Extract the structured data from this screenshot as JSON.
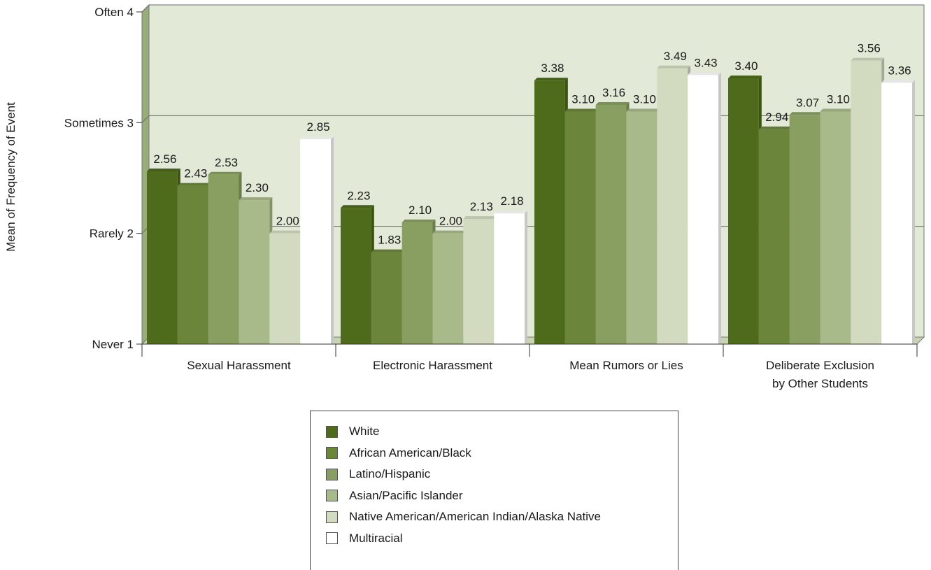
{
  "chart_data": {
    "type": "bar",
    "ylabel": "Mean of Frequency of Event",
    "ylim": [
      1,
      4
    ],
    "y_ticks": [
      {
        "value": 4,
        "label": "Often 4"
      },
      {
        "value": 3,
        "label": "Sometimes 3"
      },
      {
        "value": 2,
        "label": "Rarely 2"
      },
      {
        "value": 1,
        "label": "Never 1"
      }
    ],
    "categories": [
      [
        "Sexual Harassment"
      ],
      [
        "Electronic Harassment"
      ],
      [
        "Mean Rumors or Lies"
      ],
      [
        "Deliberate Exclusion",
        "by Other Students"
      ]
    ],
    "series": [
      {
        "name": "White",
        "color": "#4d6b1a",
        "values": [
          2.56,
          2.23,
          3.38,
          3.4
        ]
      },
      {
        "name": "African American/Black",
        "color": "#6b863b",
        "values": [
          2.43,
          1.83,
          3.1,
          2.94
        ]
      },
      {
        "name": "Latino/Hispanic",
        "color": "#899f62",
        "values": [
          2.53,
          2.1,
          3.16,
          3.07
        ]
      },
      {
        "name": "Asian/Pacific Islander",
        "color": "#a9ba8a",
        "values": [
          2.3,
          2.0,
          3.1,
          3.1
        ]
      },
      {
        "name": "Native American/American Indian/Alaska Native",
        "color": "#d2dac0",
        "values": [
          2.0,
          2.13,
          3.49,
          3.56
        ]
      },
      {
        "name": "Multiracial",
        "color": "#ffffff",
        "values": [
          2.85,
          2.18,
          3.43,
          3.36
        ]
      }
    ],
    "value_labels": [
      [
        "2.56",
        "2.23",
        "3.38",
        "3.40"
      ],
      [
        "2.43",
        "1.83",
        "3.10",
        "2.94"
      ],
      [
        "2.53",
        "2.10",
        "3.16",
        "3.07"
      ],
      [
        "2.30",
        "2.00",
        "3.10",
        "3.10"
      ],
      [
        "2.00",
        "2.13",
        "3.49",
        "3.56"
      ],
      [
        "2.85",
        "2.18",
        "3.43",
        "3.36"
      ]
    ],
    "grid": true,
    "legend_position": "bottom-center"
  }
}
